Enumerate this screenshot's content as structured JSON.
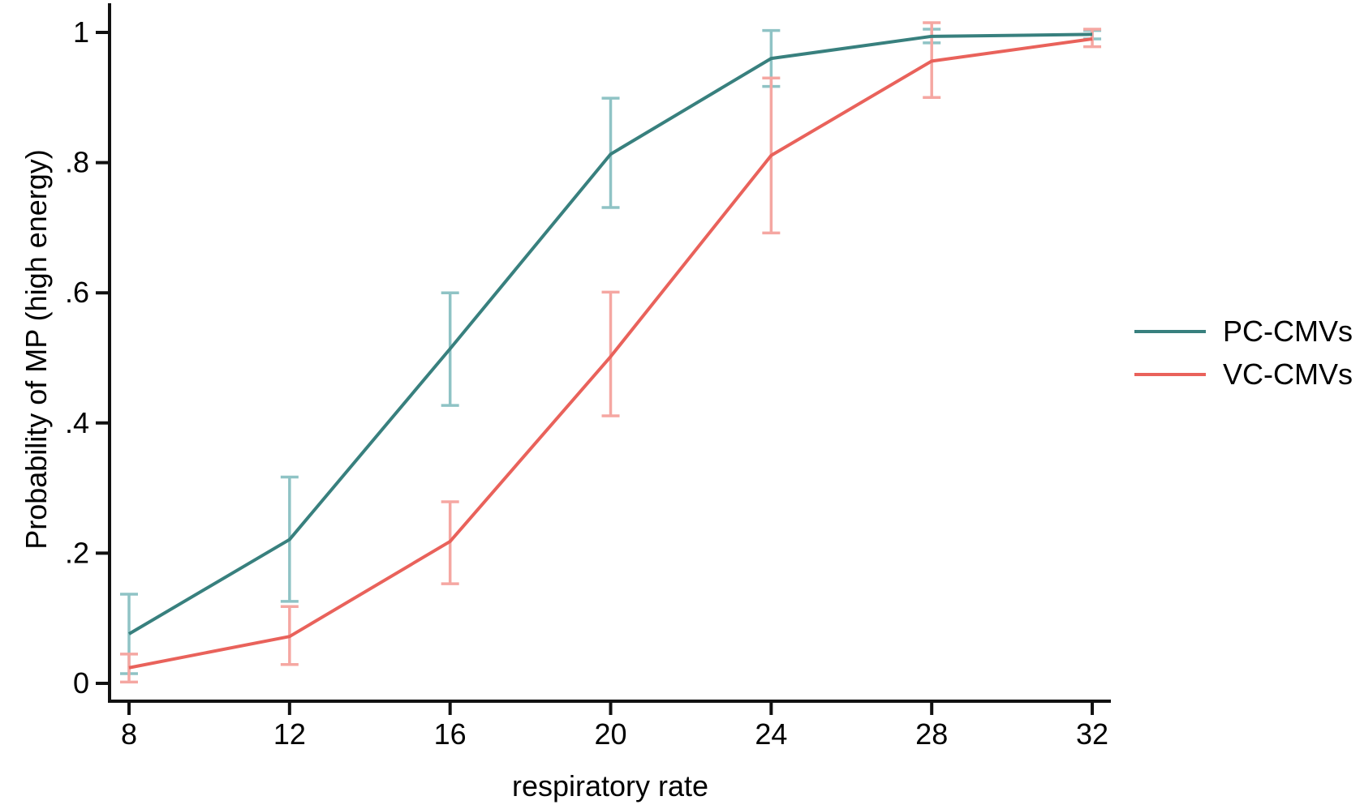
{
  "figure": {
    "background": "#ffffff",
    "axis_color": "#111111",
    "text_color": "#000000"
  },
  "chart_data": {
    "type": "line",
    "title": "",
    "xlabel": "respiratory rate",
    "ylabel": "Probability of MP (high energy)",
    "x": [
      8,
      12,
      16,
      20,
      24,
      28,
      32
    ],
    "xtick_labels": [
      "8",
      "12",
      "16",
      "20",
      "24",
      "28",
      "32"
    ],
    "yticks": [
      0,
      0.2,
      0.4,
      0.6,
      0.8,
      1
    ],
    "ytick_labels": [
      "0",
      ".2",
      ".4",
      ".6",
      ".8",
      "1"
    ],
    "xlim": [
      6.3,
      32.7
    ],
    "ylim": [
      0,
      1.03
    ],
    "grid": false,
    "error_bars": true,
    "legend_position": "right-outside",
    "series": [
      {
        "name": "PC-CMVs",
        "color": "#38807e",
        "ci_color": "#8fc3c5",
        "values": [
          0.076,
          0.221,
          0.514,
          0.813,
          0.96,
          0.994,
          0.997
        ],
        "ci_lower": [
          0.015,
          0.126,
          0.427,
          0.731,
          0.917,
          0.984,
          0.99
        ],
        "ci_upper": [
          0.137,
          0.317,
          0.6,
          0.899,
          1.003,
          1.005,
          1.003
        ]
      },
      {
        "name": "VC-CMVs",
        "color": "#e9625b",
        "ci_color": "#f5a7a2",
        "values": [
          0.024,
          0.072,
          0.218,
          0.502,
          0.811,
          0.956,
          0.99
        ],
        "ci_lower": [
          0.002,
          0.029,
          0.153,
          0.411,
          0.692,
          0.9,
          0.978
        ],
        "ci_upper": [
          0.045,
          0.118,
          0.279,
          0.601,
          0.93,
          1.015,
          1.005
        ]
      }
    ]
  }
}
